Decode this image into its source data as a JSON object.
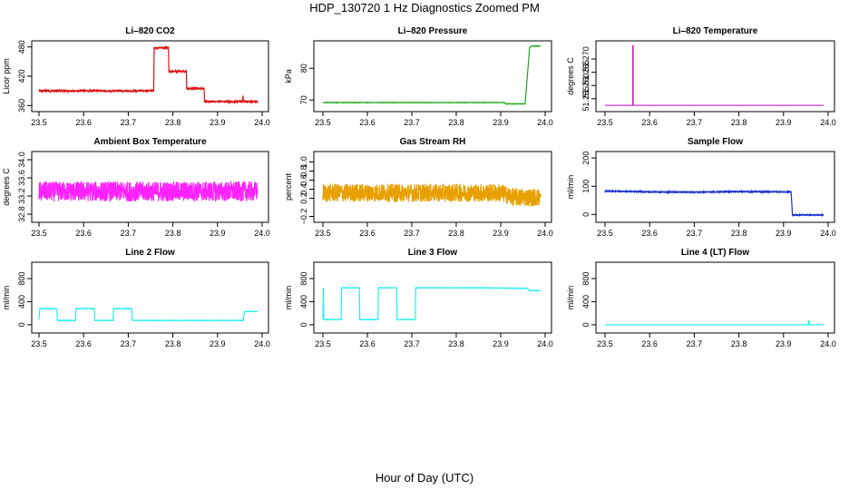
{
  "title": "HDP_130720  1 Hz Diagnostics Zoomed PM",
  "xlabel": "Hour of Day (UTC)",
  "chart_data": [
    {
      "type": "line",
      "title": "Li–820 CO2",
      "ylabel": "Licor ppm",
      "color": "#dd1111",
      "xticks": [
        "23.5",
        "23.6",
        "23.7",
        "23.8",
        "23.9",
        "24.0"
      ],
      "yticks": [
        {
          "v": 360,
          "t": "360"
        },
        {
          "v": 420,
          "t": "420"
        },
        {
          "v": 480,
          "t": "480"
        }
      ],
      "xlim": [
        23.5,
        24.0
      ],
      "ylim": [
        355,
        485
      ],
      "noise": 1.5,
      "series": [
        {
          "x": [
            23.5,
            23.757,
            23.758,
            23.79,
            23.791,
            23.83,
            23.831,
            23.87,
            23.871,
            23.956,
            23.957,
            23.958,
            23.96,
            23.99
          ],
          "y": [
            390,
            390,
            478,
            478,
            430,
            430,
            395,
            395,
            368,
            368,
            380,
            370,
            368,
            368
          ]
        }
      ]
    },
    {
      "type": "line",
      "title": "Li–820 Pressure",
      "ylabel": "kPa",
      "color": "#1aa81a",
      "xticks": [
        "23.5",
        "23.6",
        "23.7",
        "23.8",
        "23.9",
        "24.0"
      ],
      "yticks": [
        {
          "v": 70,
          "t": "70"
        },
        {
          "v": 80,
          "t": "80"
        }
      ],
      "xlim": [
        23.5,
        24.0
      ],
      "ylim": [
        67.5,
        87.5
      ],
      "noise": 0.05,
      "series": [
        {
          "x": [
            23.5,
            23.91,
            23.911,
            23.955,
            23.965,
            23.97,
            23.99
          ],
          "y": [
            69.2,
            69.2,
            68.8,
            68.8,
            86.5,
            87.0,
            87.0
          ]
        }
      ]
    },
    {
      "type": "line",
      "title": "Li–820 Temperature",
      "ylabel": "degrees C",
      "color": "#cc22cc",
      "xticks": [
        "23.5",
        "23.6",
        "23.7",
        "23.8",
        "23.9",
        "24.0"
      ],
      "yticks": [
        {
          "v": 51.255,
          "t": "51.255"
        },
        {
          "v": 51.26,
          "t": "51.260"
        },
        {
          "v": 51.265,
          "t": "51.265"
        },
        {
          "v": 51.27,
          "t": "51.270"
        }
      ],
      "xlim": [
        23.5,
        24.0
      ],
      "ylim": [
        51.2515,
        51.2755
      ],
      "noise": 0,
      "series": [
        {
          "x": [
            23.5,
            23.562,
            23.562,
            23.563,
            23.563,
            23.99
          ],
          "y": [
            51.2525,
            51.2525,
            51.275,
            51.275,
            51.2525,
            51.2525
          ]
        }
      ]
    },
    {
      "type": "line",
      "title": "Ambient Box Temperature",
      "ylabel": "degrees C",
      "color": "#ff22ff",
      "xticks": [
        "23.5",
        "23.6",
        "23.7",
        "23.8",
        "23.9",
        "24.0"
      ],
      "yticks": [
        {
          "v": 32.8,
          "t": "32.8"
        },
        {
          "v": 33.2,
          "t": "33.2"
        },
        {
          "v": 33.6,
          "t": "33.6"
        },
        {
          "v": 34.0,
          "t": "34.0"
        }
      ],
      "xlim": [
        23.5,
        24.0
      ],
      "ylim": [
        32.7,
        34.1
      ],
      "noise": 0.22,
      "series": [
        {
          "x": [
            23.5,
            23.99
          ],
          "y": [
            33.3,
            33.3
          ]
        }
      ]
    },
    {
      "type": "line",
      "title": "Gas Stream RH",
      "ylabel": "percent",
      "color": "#e8a000",
      "xticks": [
        "23.5",
        "23.6",
        "23.7",
        "23.8",
        "23.9",
        "24.0"
      ],
      "yticks": [
        {
          "v": -0.2,
          "t": "−0.2"
        },
        {
          "v": 0.2,
          "t": "0.2"
        },
        {
          "v": 0.4,
          "t": "0.4"
        },
        {
          "v": 0.6,
          "t": "0.6"
        },
        {
          "v": 0.8,
          "t": "0.8"
        },
        {
          "v": 1.0,
          "t": "1.0"
        }
      ],
      "xlim": [
        23.5,
        24.0
      ],
      "ylim": [
        -0.25,
        1.15
      ],
      "noise": 0.2,
      "series": [
        {
          "x": [
            23.5,
            23.9,
            23.93,
            23.99
          ],
          "y": [
            0.32,
            0.32,
            0.22,
            0.22
          ]
        }
      ]
    },
    {
      "type": "line",
      "title": "Sample Flow",
      "ylabel": "ml/min",
      "color": "#1530d0",
      "xticks": [
        "23.5",
        "23.6",
        "23.7",
        "23.8",
        "23.9",
        "24.0"
      ],
      "yticks": [
        {
          "v": 0,
          "t": "0"
        },
        {
          "v": 100,
          "t": "100"
        },
        {
          "v": 200,
          "t": "200"
        }
      ],
      "xlim": [
        23.5,
        24.0
      ],
      "ylim": [
        -15,
        210
      ],
      "noise": 1.5,
      "series": [
        {
          "x": [
            23.5,
            23.6,
            23.7,
            23.8,
            23.89,
            23.917,
            23.92,
            23.99
          ],
          "y": [
            83,
            80,
            79,
            81,
            80,
            80,
            -2,
            -2
          ]
        }
      ]
    },
    {
      "type": "line",
      "title": "Line 2 Flow",
      "ylabel": "ml/min",
      "color": "#22eeee",
      "xticks": [
        "23.5",
        "23.6",
        "23.7",
        "23.8",
        "23.9",
        "24.0"
      ],
      "yticks": [
        {
          "v": 0,
          "t": "0"
        },
        {
          "v": 400,
          "t": "400"
        },
        {
          "v": 800,
          "t": "800"
        }
      ],
      "xlim": [
        23.5,
        24.0
      ],
      "ylim": [
        -80,
        1020
      ],
      "noise": 3,
      "series": [
        {
          "x": [
            23.5,
            23.502,
            23.54,
            23.541,
            23.582,
            23.583,
            23.624,
            23.625,
            23.666,
            23.667,
            23.708,
            23.709,
            23.958,
            23.96,
            23.99
          ],
          "y": [
            90,
            280,
            280,
            75,
            75,
            280,
            280,
            75,
            75,
            280,
            280,
            75,
            75,
            230,
            230
          ]
        }
      ]
    },
    {
      "type": "line",
      "title": "Line 3 Flow",
      "ylabel": "ml/min",
      "color": "#22eeee",
      "xticks": [
        "23.5",
        "23.6",
        "23.7",
        "23.8",
        "23.9",
        "24.0"
      ],
      "yticks": [
        {
          "v": 0,
          "t": "0"
        },
        {
          "v": 400,
          "t": "400"
        },
        {
          "v": 800,
          "t": "800"
        }
      ],
      "xlim": [
        23.5,
        24.0
      ],
      "ylim": [
        -80,
        1020
      ],
      "noise": 3,
      "series": [
        {
          "x": [
            23.5,
            23.501,
            23.502,
            23.541,
            23.542,
            23.582,
            23.583,
            23.624,
            23.625,
            23.666,
            23.667,
            23.708,
            23.709,
            23.85,
            23.96,
            23.965,
            23.99
          ],
          "y": [
            100,
            640,
            90,
            90,
            640,
            640,
            90,
            90,
            640,
            640,
            90,
            90,
            640,
            640,
            630,
            590,
            590
          ]
        }
      ]
    },
    {
      "type": "line",
      "title": "Line 4 (LT) Flow",
      "ylabel": "ml/min",
      "color": "#22eeee",
      "xticks": [
        "23.5",
        "23.6",
        "23.7",
        "23.8",
        "23.9",
        "24.0"
      ],
      "yticks": [
        {
          "v": 0,
          "t": "0"
        },
        {
          "v": 400,
          "t": "400"
        },
        {
          "v": 800,
          "t": "800"
        }
      ],
      "xlim": [
        23.5,
        24.0
      ],
      "ylim": [
        -80,
        1020
      ],
      "noise": 0,
      "series": [
        {
          "x": [
            23.5,
            23.955,
            23.956,
            23.957,
            23.958,
            23.99
          ],
          "y": [
            0,
            0,
            70,
            70,
            0,
            0
          ]
        }
      ]
    }
  ]
}
